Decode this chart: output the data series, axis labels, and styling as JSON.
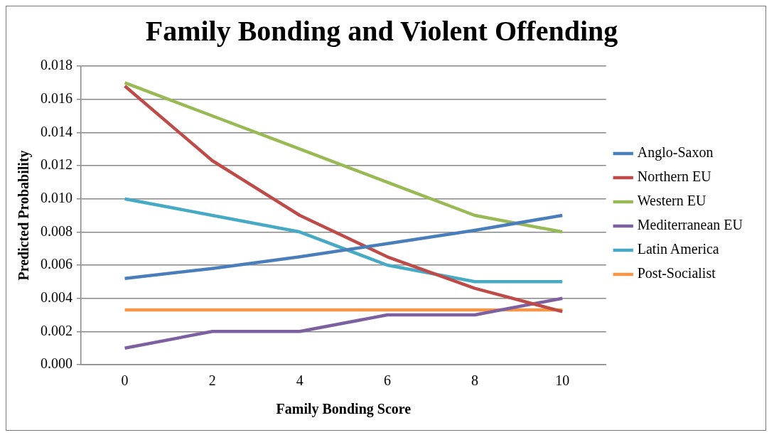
{
  "chart_data": {
    "type": "line",
    "title": "Family Bonding and Violent Offending",
    "xlabel": "Family Bonding Score",
    "ylabel": "Predicted Probability",
    "categories": [
      "0",
      "2",
      "4",
      "6",
      "8",
      "10"
    ],
    "series": [
      {
        "name": "Anglo-Saxon",
        "color": "#4a7ebb",
        "values": [
          0.0052,
          0.0058,
          0.0065,
          0.0073,
          0.0081,
          0.009
        ]
      },
      {
        "name": "Northern EU",
        "color": "#be4b48",
        "values": [
          0.0168,
          0.0123,
          0.009,
          0.0065,
          0.0046,
          0.0032
        ]
      },
      {
        "name": "Western EU",
        "color": "#98b954",
        "values": [
          0.017,
          0.015,
          0.013,
          0.011,
          0.009,
          0.008
        ]
      },
      {
        "name": "Mediterranean EU",
        "color": "#7d60a0",
        "values": [
          0.001,
          0.002,
          0.002,
          0.003,
          0.003,
          0.004
        ]
      },
      {
        "name": "Latin America",
        "color": "#46aac5",
        "values": [
          0.01,
          0.009,
          0.008,
          0.006,
          0.005,
          0.005
        ]
      },
      {
        "name": "Post-Socialist",
        "color": "#f79646",
        "values": [
          0.0033,
          0.0033,
          0.0033,
          0.0033,
          0.0033,
          0.0033
        ]
      }
    ],
    "ylim": [
      0,
      0.018
    ],
    "yticks": [
      {
        "value": 0,
        "label": "0.000"
      },
      {
        "value": 0.002,
        "label": "0.002"
      },
      {
        "value": 0.004,
        "label": "0.004"
      },
      {
        "value": 0.006,
        "label": "0.006"
      },
      {
        "value": 0.008,
        "label": "0.008"
      },
      {
        "value": 0.01,
        "label": "0.010"
      },
      {
        "value": 0.012,
        "label": "0.012"
      },
      {
        "value": 0.014,
        "label": "0.014"
      },
      {
        "value": 0.016,
        "label": "0.016"
      },
      {
        "value": 0.018,
        "label": "0.018"
      }
    ],
    "grid": "y",
    "legend": "right",
    "marker": "none",
    "line_style": "solid"
  }
}
